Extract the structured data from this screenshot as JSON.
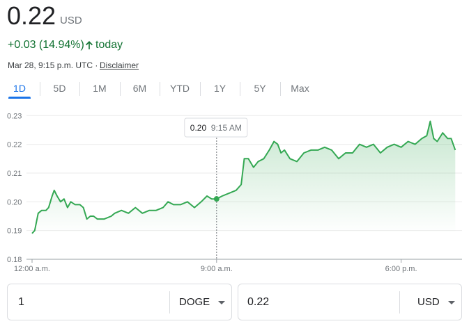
{
  "header": {
    "price": "0.22",
    "currency": "USD",
    "change": "+0.03 (14.94%)",
    "change_suffix": "today",
    "timestamp": "Mar 28, 9:15 p.m. UTC ·",
    "disclaimer": "Disclaimer"
  },
  "tabs": [
    "1D",
    "5D",
    "1M",
    "6M",
    "YTD",
    "1Y",
    "5Y",
    "Max"
  ],
  "tooltip": {
    "value": "0.20",
    "time": "9:15 AM"
  },
  "chart_data": {
    "type": "line",
    "color": "#34a853",
    "grid": true,
    "x": [
      0,
      0.13,
      0.3,
      0.47,
      0.68,
      0.81,
      0.98,
      1.08,
      1.22,
      1.39,
      1.56,
      1.73,
      1.89,
      2.1,
      2.33,
      2.5,
      2.67,
      2.84,
      3.0,
      3.18,
      3.52,
      3.86,
      4.03,
      4.36,
      4.7,
      5.04,
      5.38,
      5.72,
      6.05,
      6.39,
      6.63,
      6.9,
      7.24,
      7.58,
      7.92,
      8.25,
      8.53,
      8.76,
      9.0,
      9.27,
      9.61,
      9.95,
      10.2,
      10.35,
      10.55,
      10.8,
      11.03,
      11.3,
      11.57,
      11.8,
      11.98,
      12.14,
      12.31,
      12.58,
      12.92,
      13.26,
      13.6,
      13.94,
      14.27,
      14.61,
      14.95,
      15.29,
      15.63,
      15.97,
      16.31,
      16.65,
      16.99,
      17.32,
      17.66,
      18.0,
      18.34,
      18.68,
      19.01,
      19.25,
      19.42,
      19.59,
      19.76,
      20.03,
      20.27,
      20.44,
      20.64
    ],
    "values": [
      0.189,
      0.19,
      0.196,
      0.197,
      0.197,
      0.198,
      0.202,
      0.204,
      0.202,
      0.2,
      0.201,
      0.198,
      0.2,
      0.199,
      0.199,
      0.198,
      0.194,
      0.195,
      0.195,
      0.194,
      0.194,
      0.195,
      0.196,
      0.197,
      0.196,
      0.198,
      0.196,
      0.197,
      0.197,
      0.198,
      0.2,
      0.199,
      0.199,
      0.2,
      0.198,
      0.2,
      0.202,
      0.201,
      0.201,
      0.202,
      0.203,
      0.204,
      0.206,
      0.215,
      0.215,
      0.212,
      0.214,
      0.215,
      0.218,
      0.221,
      0.22,
      0.217,
      0.218,
      0.215,
      0.214,
      0.217,
      0.218,
      0.218,
      0.219,
      0.218,
      0.215,
      0.217,
      0.217,
      0.22,
      0.219,
      0.22,
      0.217,
      0.219,
      0.22,
      0.219,
      0.221,
      0.22,
      0.222,
      0.223,
      0.228,
      0.222,
      0.221,
      0.224,
      0.222,
      0.222,
      0.218
    ],
    "xlim": [
      0,
      20.8
    ],
    "ylim": [
      0.18,
      0.232
    ],
    "xticks": [
      {
        "value": 0,
        "label": "12:00 a.m."
      },
      {
        "value": 9,
        "label": "9:00 a.m."
      },
      {
        "value": 18,
        "label": "6:00 p.m."
      }
    ],
    "yticks": [
      0.18,
      0.19,
      {
        "value": 0.2,
        "label": "0.20"
      },
      0.21,
      0.22,
      0.23
    ]
  },
  "converter": {
    "from_amount": "1",
    "from_currency": "DOGE",
    "to_amount": "0.22",
    "to_currency": "USD"
  }
}
